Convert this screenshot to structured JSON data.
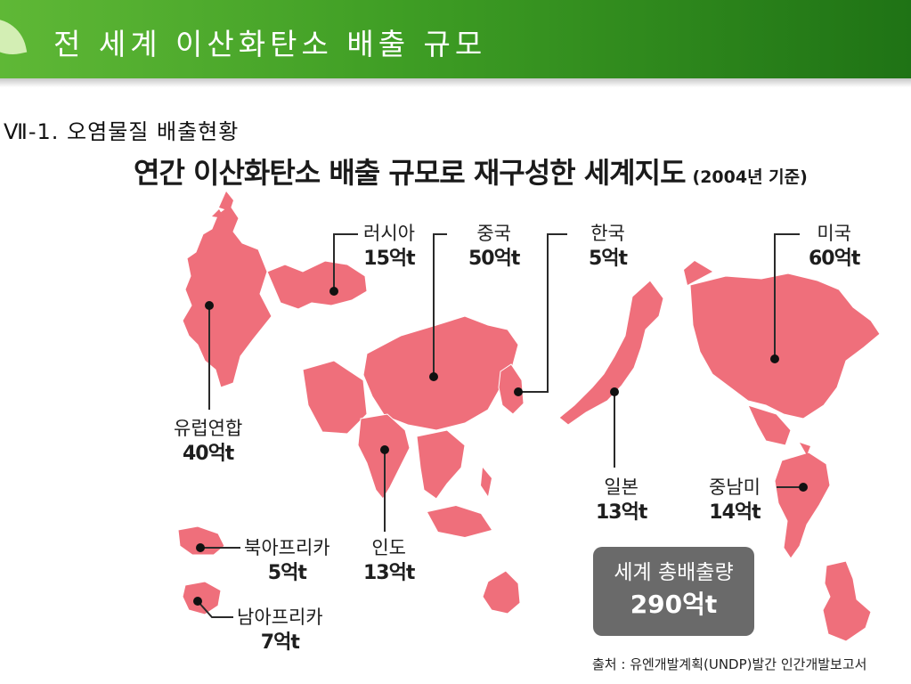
{
  "slide": {
    "title": "전 세계 이산화탄소 배출 규모",
    "section_label": "Ⅶ-1. 오염물질 배출현황"
  },
  "figure": {
    "title": "연간 이산화탄소 배출 규모로 재구성한 세계지도",
    "year_note": "(2004년 기준)",
    "map_color": "#ef6f7b",
    "regions": [
      {
        "id": "russia",
        "name": "러시아",
        "value": "15억t"
      },
      {
        "id": "china",
        "name": "중국",
        "value": "50억t"
      },
      {
        "id": "korea",
        "name": "한국",
        "value": "5억t"
      },
      {
        "id": "usa",
        "name": "미국",
        "value": "60억t"
      },
      {
        "id": "eu",
        "name": "유럽연합",
        "value": "40억t"
      },
      {
        "id": "japan",
        "name": "일본",
        "value": "13억t"
      },
      {
        "id": "latin_america",
        "name": "중남미",
        "value": "14억t"
      },
      {
        "id": "india",
        "name": "인도",
        "value": "13억t"
      },
      {
        "id": "north_africa",
        "name": "북아프리카",
        "value": "5억t"
      },
      {
        "id": "south_africa",
        "name": "남아프리카",
        "value": "7억t"
      }
    ],
    "total": {
      "label": "세계 총배출량",
      "value": "290억t"
    },
    "source": "출처 : 유엔개발계획(UNDP)발간 인간개발보고서"
  }
}
